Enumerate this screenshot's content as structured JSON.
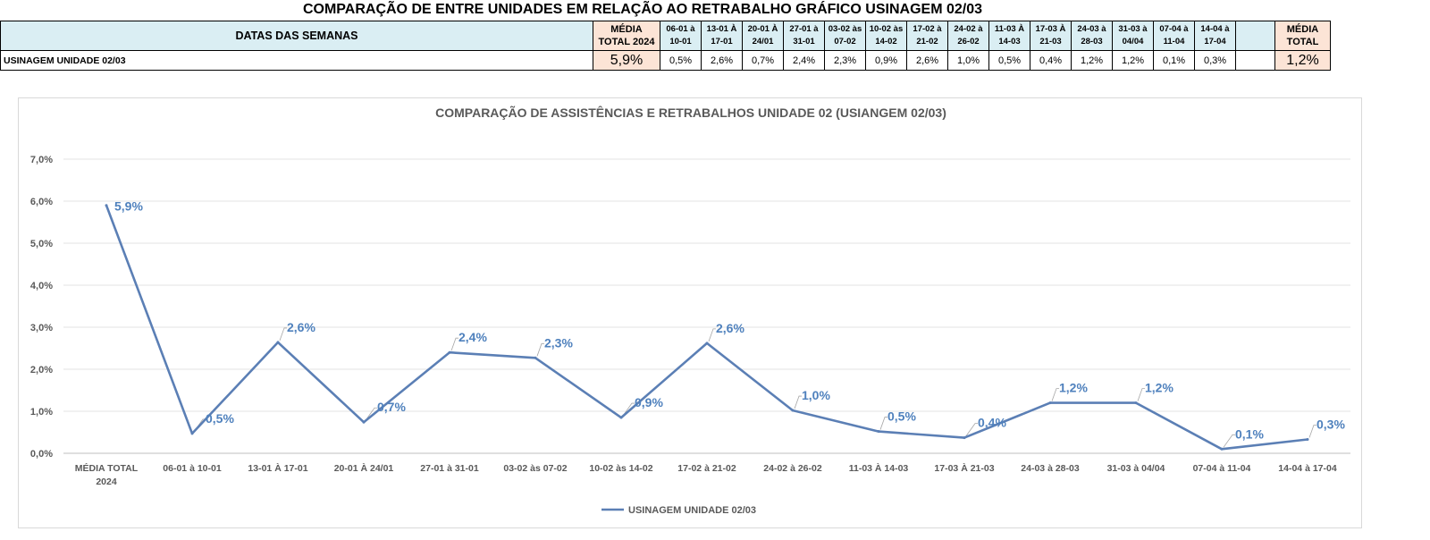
{
  "sheet": {
    "title": "COMPARAÇÃO DE ENTRE UNIDADES EM RELAÇÃO AO RETRABALHO GRÁFICO USINAGEM 02/03",
    "header_label": "DATAS DAS SEMANAS",
    "avg2024_header": [
      "MÉDIA",
      "TOTAL 2024"
    ],
    "week_headers": [
      [
        "06-01 à",
        "10-01"
      ],
      [
        "13-01 À",
        "17-01"
      ],
      [
        "20-01 À",
        "24/01"
      ],
      [
        "27-01 à",
        "31-01"
      ],
      [
        "03-02 às",
        "07-02"
      ],
      [
        "10-02 às",
        "14-02"
      ],
      [
        "17-02 à",
        "21-02"
      ],
      [
        "24-02 à",
        "26-02"
      ],
      [
        "11-03 À",
        "14-03"
      ],
      [
        "17-03 À",
        "21-03"
      ],
      [
        "24-03 à",
        "28-03"
      ],
      [
        "31-03 à",
        "04/04"
      ],
      [
        "07-04 à",
        "11-04"
      ],
      [
        "14-04 à",
        "17-04"
      ]
    ],
    "avgtotal_header": [
      "MÉDIA",
      "TOTAL"
    ],
    "row_label": "USINAGEM UNIDADE 02/03",
    "avg2024_value": "5,9%",
    "week_values": [
      "0,5%",
      "2,6%",
      "0,7%",
      "2,4%",
      "2,3%",
      "0,9%",
      "2,6%",
      "1,0%",
      "0,5%",
      "0,4%",
      "1,2%",
      "1,2%",
      "0,1%",
      "0,3%"
    ],
    "avgtotal_value": "1,2%"
  },
  "chart_data": {
    "type": "line",
    "title": "COMPARAÇÃO DE ASSISTÊNCIAS E RETRABALHOS UNIDADE 02  (USIANGEM 02/03)",
    "categories": [
      [
        "MÉDIA TOTAL",
        "2024"
      ],
      [
        "06-01 à 10-01"
      ],
      [
        "13-01 À 17-01"
      ],
      [
        "20-01 À 24/01"
      ],
      [
        "27-01 à 31-01"
      ],
      [
        "03-02 às 07-02"
      ],
      [
        "10-02 às 14-02"
      ],
      [
        "17-02 à 21-02"
      ],
      [
        "24-02 à 26-02"
      ],
      [
        "11-03 À 14-03"
      ],
      [
        "17-03 À 21-03"
      ],
      [
        "24-03 à 28-03"
      ],
      [
        "31-03 à 04/04"
      ],
      [
        "07-04 à 11-04"
      ],
      [
        "14-04 à 17-04"
      ]
    ],
    "series": [
      {
        "name": "USINAGEM UNIDADE 02/03",
        "color": "#5b7fb5",
        "values": [
          5.9,
          0.47,
          2.64,
          0.74,
          2.4,
          2.27,
          0.85,
          2.62,
          1.02,
          0.52,
          0.37,
          1.2,
          1.2,
          0.1,
          0.33
        ],
        "labels": [
          "5,9%",
          "0,5%",
          "2,6%",
          "0,7%",
          "2,4%",
          "2,3%",
          "0,9%",
          "2,6%",
          "1,0%",
          "0,5%",
          "0,4%",
          "1,2%",
          "1,2%",
          "0,1%",
          "0,3%"
        ]
      }
    ],
    "y_ticks": [
      "0,0%",
      "1,0%",
      "2,0%",
      "3,0%",
      "4,0%",
      "5,0%",
      "6,0%",
      "7,0%"
    ],
    "ylim": [
      0,
      7
    ],
    "grid": true,
    "legend_position": "bottom",
    "label_color": "#4f81bd"
  }
}
